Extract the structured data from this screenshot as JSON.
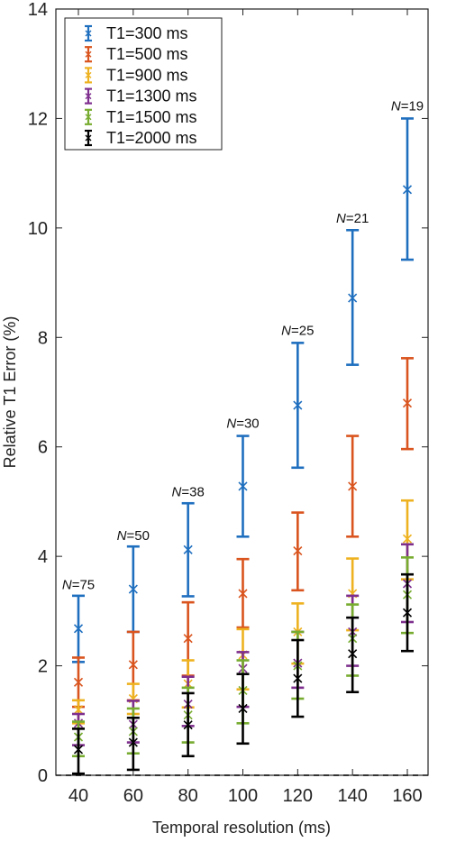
{
  "chart_data": {
    "type": "scatter",
    "xlabel": "Temporal resolution (ms)",
    "ylabel": "Relative T1 Error (%)",
    "xlim": [
      35,
      165
    ],
    "ylim": [
      0,
      14
    ],
    "xticks": [
      40,
      60,
      80,
      100,
      120,
      140,
      160
    ],
    "yticks": [
      0,
      2,
      4,
      6,
      8,
      10,
      12,
      14
    ],
    "grid": false,
    "legend_position": "top-left",
    "reference_line": {
      "y": 0,
      "style": "dashed"
    },
    "x": [
      40,
      60,
      80,
      100,
      120,
      140,
      160
    ],
    "annotations": [
      {
        "prefix": "N",
        "suffix": "=75",
        "x": 40,
        "y": 3.4
      },
      {
        "prefix": "N",
        "suffix": "=50",
        "x": 60,
        "y": 4.3
      },
      {
        "prefix": "N",
        "suffix": "=38",
        "x": 80,
        "y": 5.1
      },
      {
        "prefix": "N",
        "suffix": "=30",
        "x": 100,
        "y": 6.35
      },
      {
        "prefix": "N",
        "suffix": "=25",
        "x": 120,
        "y": 8.05
      },
      {
        "prefix": "N",
        "suffix": "=21",
        "x": 140,
        "y": 10.1
      },
      {
        "prefix": "N",
        "suffix": "=19",
        "x": 160,
        "y": 12.15
      }
    ],
    "series": [
      {
        "name": "T1=300 ms",
        "color": "#1f6fbf",
        "values": [
          2.68,
          3.4,
          4.12,
          5.28,
          6.76,
          8.72,
          10.7
        ],
        "lower": [
          2.07,
          2.62,
          3.27,
          4.36,
          5.62,
          7.5,
          9.42
        ],
        "upper": [
          3.28,
          4.18,
          4.97,
          6.2,
          7.9,
          9.96,
          12.0
        ]
      },
      {
        "name": "T1=500 ms",
        "color": "#d9541e",
        "values": [
          1.7,
          2.02,
          2.5,
          3.32,
          4.1,
          5.28,
          6.8
        ],
        "lower": [
          1.25,
          1.37,
          1.82,
          2.7,
          3.38,
          4.36,
          5.96
        ],
        "upper": [
          2.15,
          2.62,
          3.16,
          3.95,
          4.8,
          6.2,
          7.62
        ]
      },
      {
        "name": "T1=900 ms",
        "color": "#eeb220",
        "values": [
          1.2,
          1.4,
          1.67,
          2.2,
          2.62,
          3.32,
          4.32
        ],
        "lower": [
          0.95,
          1.12,
          1.24,
          1.57,
          2.04,
          2.65,
          3.58
        ],
        "upper": [
          1.37,
          1.67,
          2.1,
          2.67,
          3.14,
          3.96,
          5.02
        ]
      },
      {
        "name": "T1=1300 ms",
        "color": "#7e2f8e",
        "values": [
          0.95,
          0.93,
          1.3,
          1.95,
          2.05,
          2.62,
          3.5
        ],
        "lower": [
          0.55,
          0.6,
          0.9,
          1.25,
          1.6,
          2.0,
          2.8
        ],
        "upper": [
          1.12,
          1.36,
          1.8,
          2.25,
          2.62,
          3.28,
          4.22
        ]
      },
      {
        "name": "T1=1500 ms",
        "color": "#77ac30",
        "values": [
          0.7,
          0.8,
          1.1,
          1.55,
          2.0,
          2.5,
          3.3
        ],
        "lower": [
          0.35,
          0.4,
          0.6,
          0.95,
          1.4,
          1.82,
          2.6
        ],
        "upper": [
          0.98,
          1.22,
          1.6,
          2.1,
          2.62,
          3.12,
          3.98
        ]
      },
      {
        "name": "T1=2000 ms",
        "color": "#000000",
        "values": [
          0.47,
          0.6,
          0.92,
          1.22,
          1.77,
          2.22,
          2.97
        ],
        "lower": [
          0.03,
          0.1,
          0.35,
          0.58,
          1.07,
          1.52,
          2.27
        ],
        "upper": [
          0.85,
          1.05,
          1.5,
          1.85,
          2.47,
          2.88,
          3.67
        ]
      }
    ]
  }
}
